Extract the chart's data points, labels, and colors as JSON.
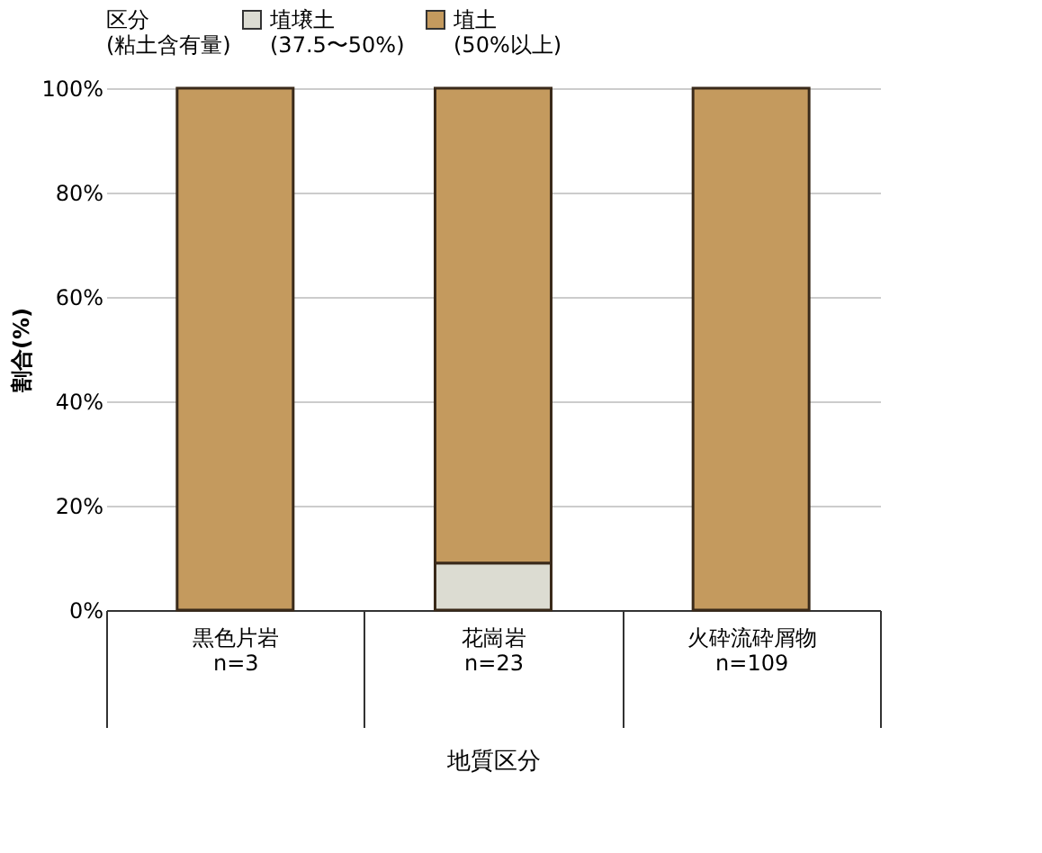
{
  "chart_data": {
    "type": "bar",
    "stacked": true,
    "xlabel": "地質区分",
    "ylabel": "割合(%)",
    "legend_title": "区分\n(粘土含有量)",
    "categories": [
      "黒色片岩\n\nn=3",
      "花崗岩\n\nn=23",
      "火砕流砕屑物\n\nn=109"
    ],
    "series": [
      {
        "name": "埴壌土\n(37.5〜50%)",
        "color": "#dcdcd2",
        "values": [
          0,
          9,
          0
        ]
      },
      {
        "name": "埴土\n(50%以上)",
        "color": "#c49a5e",
        "values": [
          100,
          91,
          100
        ]
      }
    ],
    "ylim": [
      0,
      100
    ],
    "yticks": [
      {
        "value": 0,
        "label": "0%"
      },
      {
        "value": 20,
        "label": "20%"
      },
      {
        "value": 40,
        "label": "40%"
      },
      {
        "value": 60,
        "label": "60%"
      },
      {
        "value": 80,
        "label": "80%"
      },
      {
        "value": 100,
        "label": "100%"
      }
    ],
    "grid": "y",
    "legend": "top"
  }
}
